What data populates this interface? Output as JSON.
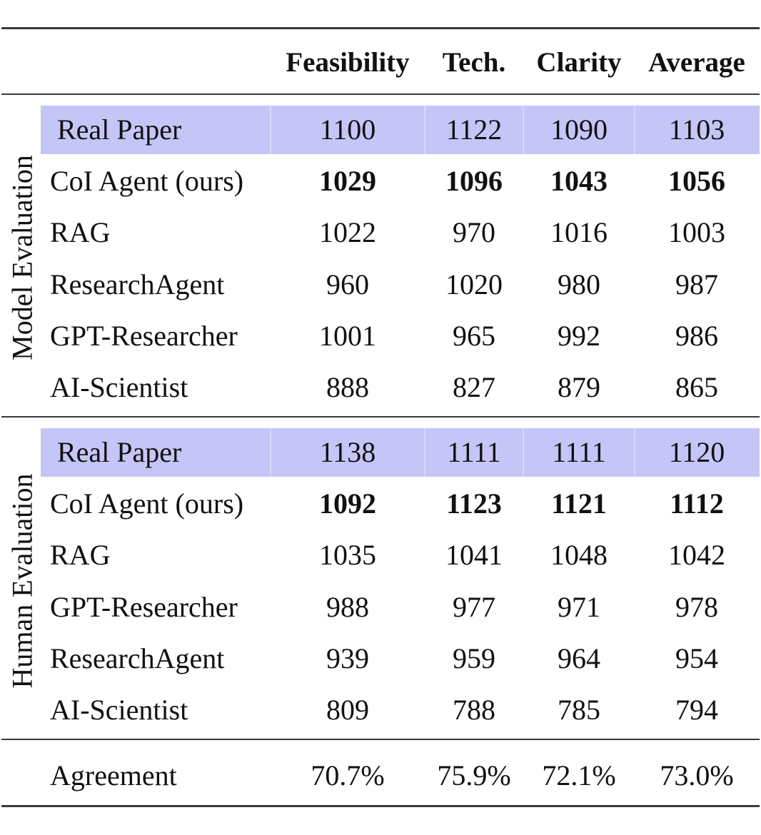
{
  "columns": [
    "Feasibility",
    "Tech.",
    "Clarity",
    "Average"
  ],
  "groups": [
    {
      "label": "Model Evaluation",
      "rows": [
        {
          "name": "Real Paper",
          "values": [
            "1100",
            "1122",
            "1090",
            "1103"
          ],
          "highlight": true,
          "bold": false
        },
        {
          "name": "CoI Agent (ours)",
          "values": [
            "1029",
            "1096",
            "1043",
            "1056"
          ],
          "highlight": false,
          "bold": true
        },
        {
          "name": "RAG",
          "values": [
            "1022",
            "970",
            "1016",
            "1003"
          ],
          "highlight": false,
          "bold": false
        },
        {
          "name": "ResearchAgent",
          "values": [
            "960",
            "1020",
            "980",
            "987"
          ],
          "highlight": false,
          "bold": false
        },
        {
          "name": "GPT-Researcher",
          "values": [
            "1001",
            "965",
            "992",
            "986"
          ],
          "highlight": false,
          "bold": false
        },
        {
          "name": "AI-Scientist",
          "values": [
            "888",
            "827",
            "879",
            "865"
          ],
          "highlight": false,
          "bold": false
        }
      ]
    },
    {
      "label": "Human Evaluation",
      "rows": [
        {
          "name": "Real Paper",
          "values": [
            "1138",
            "1111",
            "1111",
            "1120"
          ],
          "highlight": true,
          "bold": false
        },
        {
          "name": "CoI Agent (ours)",
          "values": [
            "1092",
            "1123",
            "1121",
            "1112"
          ],
          "highlight": false,
          "bold": true
        },
        {
          "name": "RAG",
          "values": [
            "1035",
            "1041",
            "1048",
            "1042"
          ],
          "highlight": false,
          "bold": false
        },
        {
          "name": "GPT-Researcher",
          "values": [
            "988",
            "977",
            "971",
            "978"
          ],
          "highlight": false,
          "bold": false
        },
        {
          "name": "ResearchAgent",
          "values": [
            "939",
            "959",
            "964",
            "954"
          ],
          "highlight": false,
          "bold": false
        },
        {
          "name": "AI-Scientist",
          "values": [
            "809",
            "788",
            "785",
            "794"
          ],
          "highlight": false,
          "bold": false
        }
      ]
    }
  ],
  "agreement": {
    "name": "Agreement",
    "values": [
      "70.7%",
      "75.9%",
      "72.1%",
      "73.0%"
    ]
  },
  "colors": {
    "highlight_row": "#c5c5f7",
    "rule": "#3a3a3a"
  }
}
